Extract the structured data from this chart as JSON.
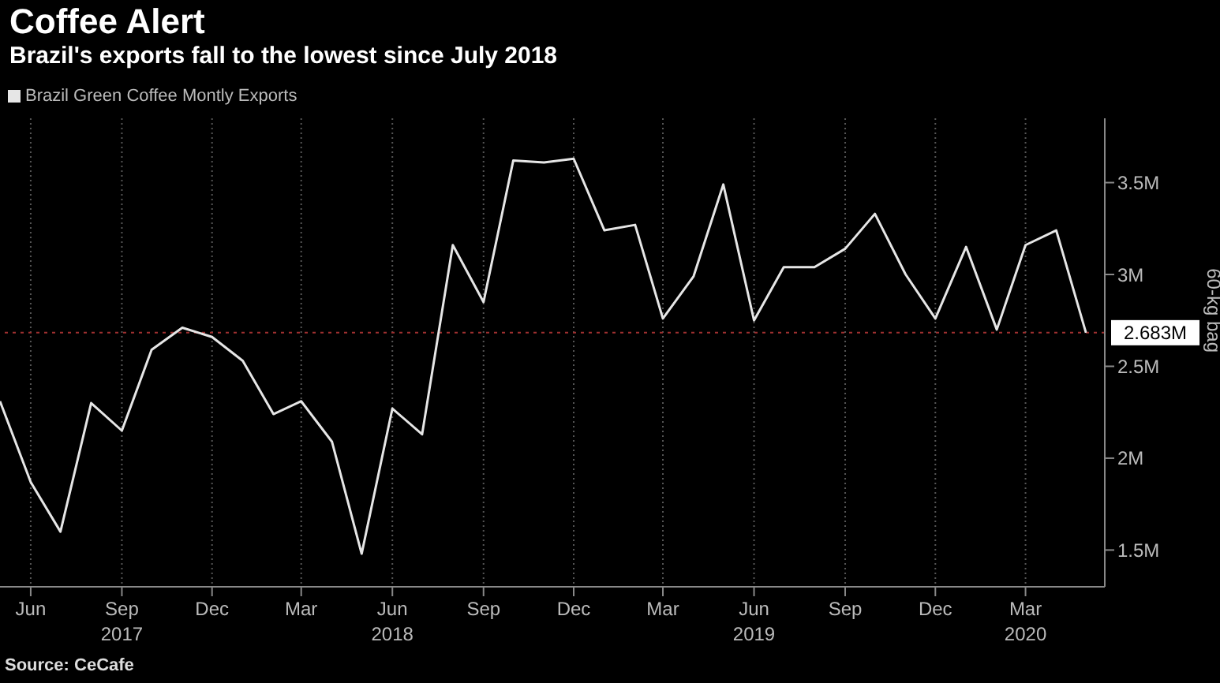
{
  "chart_data": {
    "type": "line",
    "title": "Coffee Alert",
    "subtitle": "Brazil's exports fall to the lowest since July 2018",
    "ylabel": "60-kg bag",
    "annotations": [
      "Source: CeCafe"
    ],
    "x": [
      "2017-05",
      "2017-06",
      "2017-07",
      "2017-08",
      "2017-09",
      "2017-10",
      "2017-11",
      "2017-12",
      "2018-01",
      "2018-02",
      "2018-03",
      "2018-04",
      "2018-05",
      "2018-06",
      "2018-07",
      "2018-08",
      "2018-09",
      "2018-10",
      "2018-11",
      "2018-12",
      "2019-01",
      "2019-02",
      "2019-03",
      "2019-04",
      "2019-05",
      "2019-06",
      "2019-07",
      "2019-08",
      "2019-09",
      "2019-10",
      "2019-11",
      "2019-12",
      "2020-01",
      "2020-02",
      "2020-03",
      "2020-04",
      "2020-05"
    ],
    "series": [
      {
        "name": "Brazil Green Coffee Montly Exports",
        "color": "#e6e6e6",
        "values": [
          2.31,
          1.87,
          1.6,
          2.3,
          2.15,
          2.59,
          2.71,
          2.66,
          2.53,
          2.24,
          2.31,
          2.09,
          1.48,
          2.27,
          2.13,
          3.16,
          2.85,
          3.62,
          3.61,
          3.63,
          3.24,
          3.27,
          2.76,
          2.99,
          3.49,
          2.75,
          3.04,
          3.04,
          3.14,
          3.33,
          3,
          2.76,
          3.15,
          2.7,
          3.16,
          3.24,
          2.683
        ]
      }
    ],
    "xlim": [
      "2017-05",
      "2020-05-20"
    ],
    "xticks": [
      {
        "value": "2017-06",
        "label": "Jun"
      },
      {
        "value": "2017-09",
        "label": "Sep\n2017"
      },
      {
        "value": "2017-12",
        "label": "Dec"
      },
      {
        "value": "2018-03",
        "label": "Mar"
      },
      {
        "value": "2018-06",
        "label": "Jun\n2018"
      },
      {
        "value": "2018-09",
        "label": "Sep"
      },
      {
        "value": "2018-12",
        "label": "Dec"
      },
      {
        "value": "2019-03",
        "label": "Mar"
      },
      {
        "value": "2019-06",
        "label": "Jun\n2019"
      },
      {
        "value": "2019-09",
        "label": "Sep"
      },
      {
        "value": "2019-12",
        "label": "Dec"
      },
      {
        "value": "2020-03",
        "label": "Mar\n2020"
      }
    ],
    "ylim": [
      1.3,
      3.85
    ],
    "yticks": [
      {
        "value": 1.5,
        "label": "1.5M"
      },
      {
        "value": 2,
        "label": "2M"
      },
      {
        "value": 2.5,
        "label": "2.5M"
      },
      {
        "value": 3,
        "label": "3M"
      },
      {
        "value": 3.5,
        "label": "3.5M"
      }
    ],
    "ref_lines": [
      {
        "axis": "y",
        "value": 2.683,
        "label": "2.683M",
        "color": "#a03030",
        "line_style": "dotted"
      }
    ],
    "grid": true,
    "legend": "top left",
    "marker": "none",
    "line_style": "solid"
  }
}
